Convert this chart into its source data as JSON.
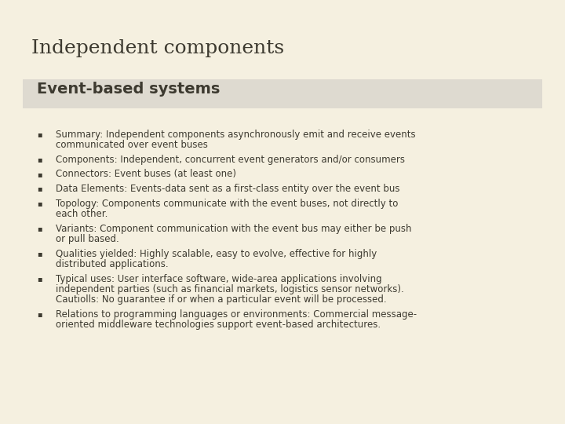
{
  "bg_color": "#f5f0e0",
  "title": "Independent components",
  "title_color": "#3d3a30",
  "title_fontsize": 18,
  "subtitle": "Event-based systems",
  "subtitle_color": "#3d3a30",
  "subtitle_fontsize": 14,
  "subtitle_bg": "#dedad0",
  "line_color": "#3d3a30",
  "bullet_color": "#3d3a30",
  "text_color": "#3d3a30",
  "text_fontsize": 8.5,
  "bullets": [
    "Summary: Independent components asynchronously emit and receive events\ncommunicated over event buses",
    "Components: Independent, concurrent event generators and/or consumers",
    "Connectors: Event buses (at least one)",
    "Data Elements: Events-data sent as a first-class entity over the event bus",
    "Topology: Components communicate with the event buses, not directly to\neach other.",
    "Variants: Component communication with the event bus may either be push\nor pull based.",
    "Qualities yielded: Highly scalable, easy to evolve, effective for highly\ndistributed applications.",
    "Typical uses: User interface software, wide-area applications involving\nindependent parties (such as financial markets, logistics sensor networks).\nCautiolls: No guarantee if or when a particular event will be processed.",
    "Relations to programming languages or environments: Commercial message-\noriented middleware technologies support event-based architectures."
  ]
}
